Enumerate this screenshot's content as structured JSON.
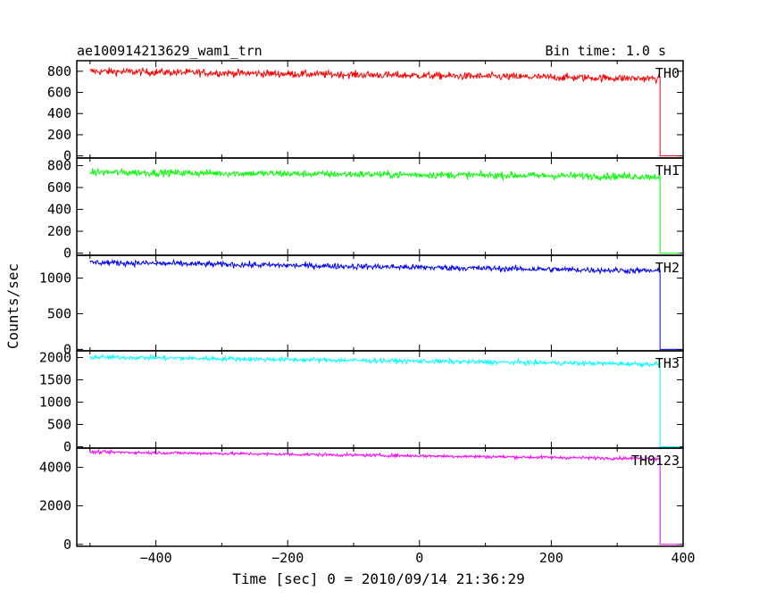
{
  "chart_data": {
    "type": "line",
    "title": "ae100914213629_wam1_trn",
    "subtitle": "Bin time: 1.0 s",
    "xlabel": "Time [sec] 0 = 2010/09/14 21:36:29",
    "ylabel": "Counts/sec",
    "xlim": [
      -520,
      400
    ],
    "x_ticks": [
      -400,
      -200,
      0,
      200,
      400
    ],
    "x_start": -500,
    "x_end": 365,
    "grid": false,
    "panels": [
      {
        "name": "TH0",
        "color": "#ff0000",
        "ylim": [
          -20,
          900
        ],
        "y_ticks": [
          0,
          200,
          400,
          600,
          800
        ],
        "start_value": 800,
        "end_value": 730,
        "noise": 60,
        "after_value": 0
      },
      {
        "name": "TH1",
        "color": "#00ff00",
        "ylim": [
          -20,
          870
        ],
        "y_ticks": [
          0,
          200,
          400,
          600,
          800
        ],
        "start_value": 740,
        "end_value": 700,
        "noise": 55,
        "after_value": 0
      },
      {
        "name": "TH2",
        "color": "#0000ff",
        "ylim": [
          -20,
          1320
        ],
        "y_ticks": [
          0,
          500,
          1000
        ],
        "start_value": 1220,
        "end_value": 1100,
        "noise": 70,
        "after_value": 0
      },
      {
        "name": "TH3",
        "color": "#00ffff",
        "ylim": [
          -30,
          2150
        ],
        "y_ticks": [
          0,
          500,
          1000,
          1500,
          2000
        ],
        "start_value": 2010,
        "end_value": 1850,
        "noise": 90,
        "after_value": 0
      },
      {
        "name": "TH0123",
        "color": "#ff00ff",
        "ylim": [
          -100,
          5000
        ],
        "y_ticks": [
          0,
          2000,
          4000
        ],
        "start_value": 4800,
        "end_value": 4450,
        "noise": 140,
        "after_value": 0
      }
    ]
  }
}
